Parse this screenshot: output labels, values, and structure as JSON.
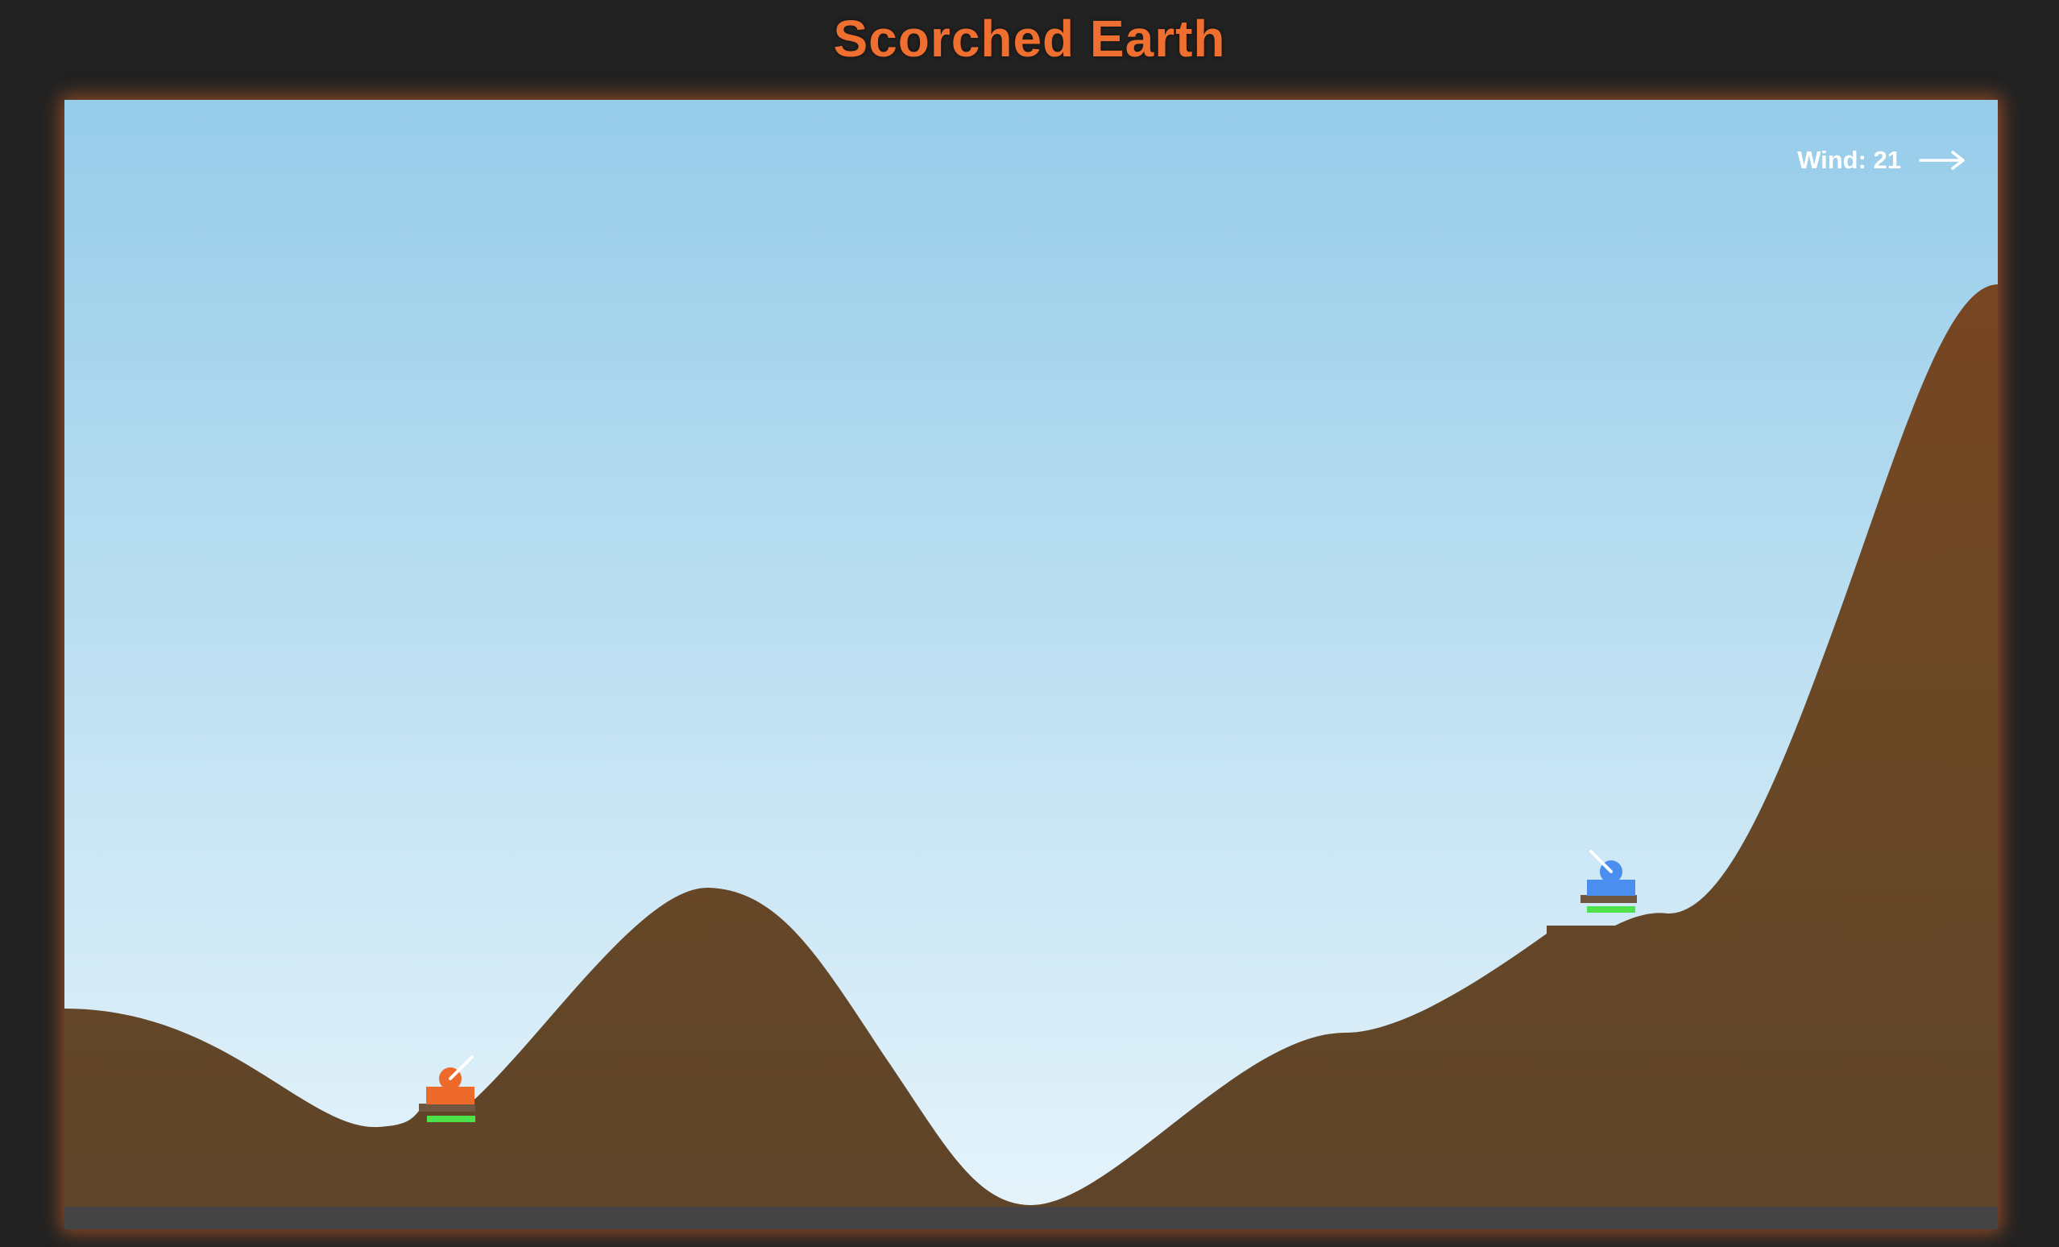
{
  "header": {
    "title": "Scorched Earth"
  },
  "hud": {
    "wind_label": "Wind: 21",
    "wind_value": 21,
    "wind_direction": "right",
    "wind_icon": "arrow-right-icon"
  },
  "colors": {
    "title": "#ee6f2f",
    "page_background": "#222222",
    "frame_glow": "#e46b2a",
    "sky_top": "#96cce9",
    "sky_bottom": "#e6f4fb",
    "terrain_base": "#5e4429",
    "terrain_high": "#784622",
    "bottom_strip": "#444444",
    "player_tank": "#ed6a2a",
    "enemy_tank": "#4a8ff0",
    "tank_base": "#6e5640",
    "barrel": "#ffffff",
    "health_bar": "#4de24a"
  },
  "players": [
    {
      "id": "player",
      "side": "left",
      "color": "#ed6a2a",
      "health": 1.0,
      "barrel_angle_deg": 45,
      "icon": "tank-icon"
    },
    {
      "id": "enemy",
      "side": "right",
      "color": "#4a8ff0",
      "health": 1.0,
      "barrel_angle_deg": 135,
      "icon": "tank-icon"
    }
  ]
}
